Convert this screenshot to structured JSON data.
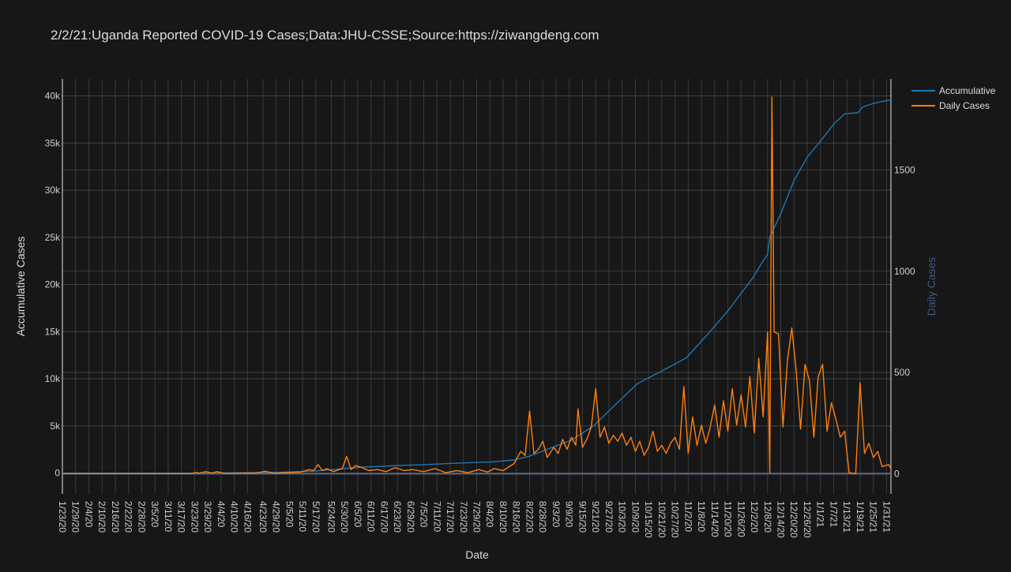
{
  "chart_data": {
    "type": "line",
    "title": "2/2/21:Uganda Reported COVID-19 Cases;Data:JHU-CSSE;Source:https://ziwangdeng.com",
    "xlabel": "Date",
    "ylabel_left": "Accumulative Cases",
    "ylabel_right": "Daily Cases",
    "x_start": "2020-01-23",
    "x_end": "2021-02-02",
    "x_tick_labels": [
      "1/23/20",
      "1/29/20",
      "2/4/20",
      "2/10/20",
      "2/16/20",
      "2/22/20",
      "2/28/20",
      "3/5/20",
      "3/11/20",
      "3/17/20",
      "3/23/20",
      "3/29/20",
      "4/4/20",
      "4/10/20",
      "4/16/20",
      "4/23/20",
      "4/29/20",
      "5/5/20",
      "5/11/20",
      "5/17/20",
      "5/24/20",
      "5/30/20",
      "6/5/20",
      "6/11/20",
      "6/17/20",
      "6/23/20",
      "6/29/20",
      "7/5/20",
      "7/11/20",
      "7/17/20",
      "7/23/20",
      "7/29/20",
      "8/4/20",
      "8/10/20",
      "8/16/20",
      "8/22/20",
      "8/28/20",
      "9/3/20",
      "9/9/20",
      "9/15/20",
      "9/21/20",
      "9/27/20",
      "10/3/20",
      "10/9/20",
      "10/15/20",
      "10/21/20",
      "10/27/20",
      "11/2/20",
      "11/8/20",
      "11/14/20",
      "11/20/20",
      "11/26/20",
      "12/2/20",
      "12/8/20",
      "12/14/20",
      "12/20/20",
      "12/26/20",
      "1/1/21",
      "1/7/21",
      "1/13/21",
      "1/19/21",
      "1/25/21",
      "1/31/21"
    ],
    "y_left_range": [
      -2200,
      41800
    ],
    "y_left_ticks": [
      0,
      5000,
      10000,
      15000,
      20000,
      25000,
      30000,
      35000,
      40000
    ],
    "y_left_tick_labels": [
      "0",
      "5k",
      "10k",
      "15k",
      "20k",
      "25k",
      "30k",
      "35k",
      "40k"
    ],
    "y_right_range": [
      -100,
      1950
    ],
    "y_right_ticks": [
      0,
      500,
      1000,
      1500
    ],
    "y_right_tick_labels": [
      "0",
      "500",
      "1000",
      "1500"
    ],
    "grid": true,
    "legend_position": "top-right",
    "colors": {
      "accumulative": "#1f77b4",
      "daily": "#ff7f0e",
      "right_axis_title": "#3d5a80"
    },
    "series": [
      {
        "name": "Accumulative",
        "axis": "left",
        "points": [
          [
            "2020-01-23",
            0
          ],
          [
            "2020-03-20",
            0
          ],
          [
            "2020-04-15",
            50
          ],
          [
            "2020-05-01",
            90
          ],
          [
            "2020-05-15",
            200
          ],
          [
            "2020-05-25",
            380
          ],
          [
            "2020-06-05",
            600
          ],
          [
            "2020-06-20",
            780
          ],
          [
            "2020-07-05",
            900
          ],
          [
            "2020-07-20",
            1050
          ],
          [
            "2020-08-05",
            1200
          ],
          [
            "2020-08-15",
            1400
          ],
          [
            "2020-08-22",
            1800
          ],
          [
            "2020-09-01",
            2700
          ],
          [
            "2020-09-10",
            3500
          ],
          [
            "2020-09-20",
            5000
          ],
          [
            "2020-10-01",
            7500
          ],
          [
            "2020-10-10",
            9500
          ],
          [
            "2020-10-20",
            10700
          ],
          [
            "2020-11-01",
            12200
          ],
          [
            "2020-11-10",
            14500
          ],
          [
            "2020-11-20",
            17200
          ],
          [
            "2020-12-01",
            20600
          ],
          [
            "2020-12-06",
            22500
          ],
          [
            "2020-12-08",
            23200
          ],
          [
            "2020-12-09",
            25000
          ],
          [
            "2020-12-14",
            27500
          ],
          [
            "2020-12-20",
            31000
          ],
          [
            "2020-12-26",
            33500
          ],
          [
            "2021-01-01",
            35200
          ],
          [
            "2021-01-07",
            37000
          ],
          [
            "2021-01-12",
            38100
          ],
          [
            "2021-01-18",
            38200
          ],
          [
            "2021-01-20",
            38800
          ],
          [
            "2021-01-25",
            39200
          ],
          [
            "2021-02-02",
            39600
          ]
        ]
      },
      {
        "name": "Daily Cases",
        "axis": "right",
        "points": [
          [
            "2020-01-23",
            0
          ],
          [
            "2020-03-21",
            0
          ],
          [
            "2020-03-24",
            6
          ],
          [
            "2020-03-25",
            2
          ],
          [
            "2020-03-28",
            10
          ],
          [
            "2020-03-31",
            3
          ],
          [
            "2020-04-02",
            10
          ],
          [
            "2020-04-06",
            1
          ],
          [
            "2020-04-20",
            3
          ],
          [
            "2020-04-24",
            12
          ],
          [
            "2020-04-28",
            2
          ],
          [
            "2020-05-05",
            6
          ],
          [
            "2020-05-10",
            8
          ],
          [
            "2020-05-14",
            20
          ],
          [
            "2020-05-16",
            15
          ],
          [
            "2020-05-18",
            45
          ],
          [
            "2020-05-20",
            15
          ],
          [
            "2020-05-22",
            25
          ],
          [
            "2020-05-25",
            10
          ],
          [
            "2020-05-27",
            18
          ],
          [
            "2020-05-29",
            25
          ],
          [
            "2020-05-31",
            85
          ],
          [
            "2020-06-02",
            20
          ],
          [
            "2020-06-04",
            40
          ],
          [
            "2020-06-07",
            30
          ],
          [
            "2020-06-10",
            15
          ],
          [
            "2020-06-14",
            20
          ],
          [
            "2020-06-18",
            10
          ],
          [
            "2020-06-22",
            30
          ],
          [
            "2020-06-26",
            15
          ],
          [
            "2020-06-30",
            20
          ],
          [
            "2020-07-05",
            10
          ],
          [
            "2020-07-10",
            25
          ],
          [
            "2020-07-15",
            5
          ],
          [
            "2020-07-20",
            15
          ],
          [
            "2020-07-25",
            5
          ],
          [
            "2020-07-30",
            20
          ],
          [
            "2020-08-03",
            8
          ],
          [
            "2020-08-06",
            25
          ],
          [
            "2020-08-10",
            15
          ],
          [
            "2020-08-15",
            50
          ],
          [
            "2020-08-18",
            110
          ],
          [
            "2020-08-20",
            90
          ],
          [
            "2020-08-22",
            310
          ],
          [
            "2020-08-24",
            100
          ],
          [
            "2020-08-26",
            120
          ],
          [
            "2020-08-28",
            160
          ],
          [
            "2020-08-30",
            80
          ],
          [
            "2020-09-02",
            130
          ],
          [
            "2020-09-04",
            100
          ],
          [
            "2020-09-06",
            170
          ],
          [
            "2020-09-08",
            120
          ],
          [
            "2020-09-10",
            180
          ],
          [
            "2020-09-12",
            140
          ],
          [
            "2020-09-13",
            320
          ],
          [
            "2020-09-15",
            130
          ],
          [
            "2020-09-17",
            170
          ],
          [
            "2020-09-19",
            230
          ],
          [
            "2020-09-21",
            420
          ],
          [
            "2020-09-23",
            180
          ],
          [
            "2020-09-25",
            230
          ],
          [
            "2020-09-27",
            150
          ],
          [
            "2020-09-29",
            190
          ],
          [
            "2020-10-01",
            160
          ],
          [
            "2020-10-03",
            200
          ],
          [
            "2020-10-05",
            140
          ],
          [
            "2020-10-07",
            180
          ],
          [
            "2020-10-09",
            110
          ],
          [
            "2020-10-11",
            160
          ],
          [
            "2020-10-13",
            90
          ],
          [
            "2020-10-15",
            130
          ],
          [
            "2020-10-17",
            210
          ],
          [
            "2020-10-19",
            110
          ],
          [
            "2020-10-21",
            140
          ],
          [
            "2020-10-23",
            100
          ],
          [
            "2020-10-25",
            150
          ],
          [
            "2020-10-27",
            180
          ],
          [
            "2020-10-29",
            120
          ],
          [
            "2020-10-31",
            430
          ],
          [
            "2020-11-02",
            100
          ],
          [
            "2020-11-04",
            280
          ],
          [
            "2020-11-06",
            140
          ],
          [
            "2020-11-08",
            240
          ],
          [
            "2020-11-10",
            150
          ],
          [
            "2020-11-12",
            230
          ],
          [
            "2020-11-14",
            340
          ],
          [
            "2020-11-16",
            180
          ],
          [
            "2020-11-18",
            360
          ],
          [
            "2020-11-20",
            210
          ],
          [
            "2020-11-22",
            420
          ],
          [
            "2020-11-24",
            240
          ],
          [
            "2020-11-26",
            390
          ],
          [
            "2020-11-28",
            230
          ],
          [
            "2020-11-30",
            480
          ],
          [
            "2020-12-02",
            200
          ],
          [
            "2020-12-04",
            570
          ],
          [
            "2020-12-06",
            280
          ],
          [
            "2020-12-08",
            700
          ],
          [
            "2020-12-09",
            5
          ],
          [
            "2020-12-10",
            1860
          ],
          [
            "2020-12-11",
            700
          ],
          [
            "2020-12-13",
            690
          ],
          [
            "2020-12-15",
            230
          ],
          [
            "2020-12-17",
            560
          ],
          [
            "2020-12-19",
            720
          ],
          [
            "2020-12-21",
            510
          ],
          [
            "2020-12-23",
            220
          ],
          [
            "2020-12-25",
            540
          ],
          [
            "2020-12-27",
            460
          ],
          [
            "2020-12-29",
            180
          ],
          [
            "2020-12-31",
            480
          ],
          [
            "2021-01-02",
            540
          ],
          [
            "2021-01-04",
            210
          ],
          [
            "2021-01-06",
            350
          ],
          [
            "2021-01-08",
            270
          ],
          [
            "2021-01-10",
            180
          ],
          [
            "2021-01-12",
            210
          ],
          [
            "2021-01-14",
            5
          ],
          [
            "2021-01-17",
            0
          ],
          [
            "2021-01-19",
            450
          ],
          [
            "2021-01-21",
            100
          ],
          [
            "2021-01-23",
            150
          ],
          [
            "2021-01-25",
            80
          ],
          [
            "2021-01-27",
            110
          ],
          [
            "2021-01-29",
            35
          ],
          [
            "2021-02-01",
            45
          ],
          [
            "2021-02-02",
            25
          ]
        ]
      }
    ]
  }
}
